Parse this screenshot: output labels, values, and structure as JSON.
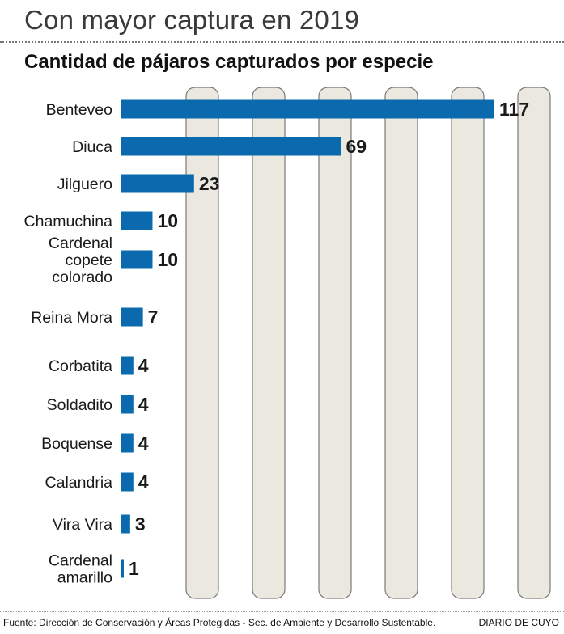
{
  "headline": "Con mayor captura en 2019",
  "footer": {
    "source": "Fuente: Dirección de Conservación y Áreas Protegidas - Sec. de Ambiente y Desarrollo Sustentable.",
    "brand": "DIARIO DE CUYO"
  },
  "chart_data": {
    "type": "bar",
    "orientation": "horizontal",
    "title": "Cantidad de pájaros capturados por especie",
    "categories": [
      [
        "Benteveo"
      ],
      [
        "Diuca"
      ],
      [
        "Jilguero"
      ],
      [
        "Chamuchina"
      ],
      [
        "Cardenal",
        "copete",
        "colorado"
      ],
      [
        "Reina Mora"
      ],
      [
        "Corbatita"
      ],
      [
        "Soldadito"
      ],
      [
        "Boquense"
      ],
      [
        "Calandria"
      ],
      [
        "Vira Vira"
      ],
      [
        "Cardenal",
        "amarillo"
      ]
    ],
    "values": [
      117,
      69,
      23,
      10,
      10,
      7,
      4,
      4,
      4,
      4,
      3,
      1
    ],
    "xlim": [
      0,
      120
    ],
    "grid": true,
    "colors": {
      "bar": "#0a6aad",
      "grid_column": "#ebe8e0",
      "grid_stroke": "#7a7a7a"
    }
  }
}
